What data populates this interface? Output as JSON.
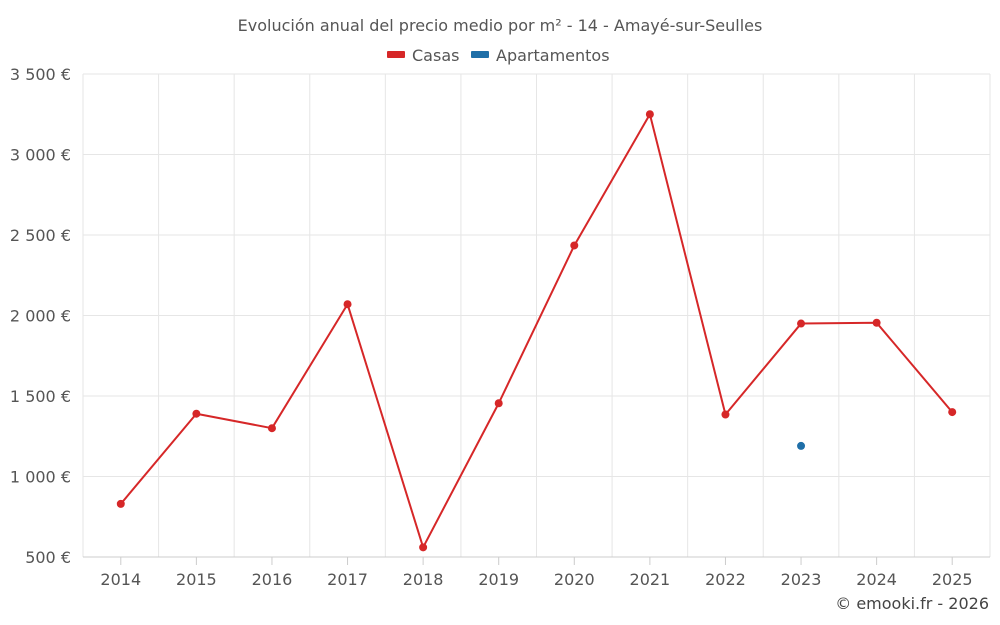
{
  "chart_data": {
    "type": "line",
    "title": "Evolución anual del precio medio por m² - 14 - Amayé-sur-Seulles",
    "categories": [
      "2014",
      "2015",
      "2016",
      "2017",
      "2018",
      "2019",
      "2020",
      "2021",
      "2022",
      "2023",
      "2024",
      "2025"
    ],
    "series": [
      {
        "name": "Casas",
        "color": "#d62728",
        "values": [
          830,
          1390,
          1300,
          2070,
          560,
          1455,
          2435,
          3250,
          1385,
          1950,
          1955,
          1400
        ]
      },
      {
        "name": "Apartamentos",
        "color": "#1f6fa8",
        "values": [
          null,
          null,
          null,
          null,
          null,
          null,
          null,
          null,
          null,
          1190,
          null,
          null
        ]
      }
    ],
    "ylim": [
      500,
      3500
    ],
    "yticks": [
      {
        "value": 500,
        "label": "500 €"
      },
      {
        "value": 1000,
        "label": "1 000 €"
      },
      {
        "value": 1500,
        "label": "1 500 €"
      },
      {
        "value": 2000,
        "label": "2 000 €"
      },
      {
        "value": 2500,
        "label": "2 500 €"
      },
      {
        "value": 3000,
        "label": "3 000 €"
      },
      {
        "value": 3500,
        "label": "3 500 €"
      }
    ],
    "grid": true,
    "legend_position": "top-center",
    "credit": "© emooki.fr - 2026"
  }
}
